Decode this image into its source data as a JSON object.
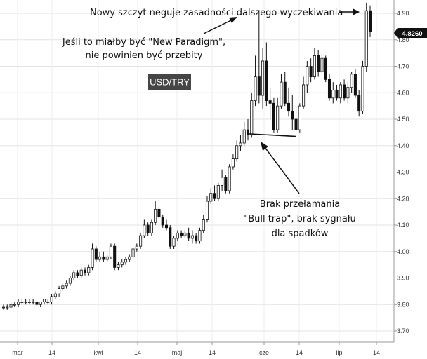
{
  "chart_data": {
    "type": "candlestick",
    "symbol_label": "USD/TRY",
    "last_price_label": "4.8260",
    "ylim": [
      3.65,
      4.95
    ],
    "y_ticks": [
      "3.70",
      "3.80",
      "3.90",
      "4.00",
      "4.10",
      "4.20",
      "4.30",
      "4.40",
      "4.50",
      "4.60",
      "4.70",
      "4.80",
      "4.90"
    ],
    "x_ticks": [
      "mar",
      "14",
      "kwi",
      "14",
      "maj",
      "14",
      "cze",
      "14",
      "lip",
      "14"
    ],
    "grid": true,
    "annotations": [
      {
        "lines": [
          "Nowy szczyt neguje zasadności dalszego wyczekiwania"
        ]
      },
      {
        "lines": [
          "Jeśli to miałby być \"New Paradigm\",",
          "nie powinien być przebity"
        ]
      },
      {
        "lines": [
          "Brak przełamania",
          "\"Bull trap\", brak sygnału",
          "dla spadków"
        ]
      }
    ],
    "support_line": {
      "from": 4.445,
      "to": 4.435
    },
    "candles": [
      [
        3.79,
        3.8,
        3.78,
        3.79
      ],
      [
        3.79,
        3.8,
        3.78,
        3.79
      ],
      [
        3.79,
        3.81,
        3.78,
        3.8
      ],
      [
        3.8,
        3.81,
        3.79,
        3.8
      ],
      [
        3.8,
        3.82,
        3.79,
        3.81
      ],
      [
        3.81,
        3.82,
        3.8,
        3.81
      ],
      [
        3.81,
        3.82,
        3.8,
        3.81
      ],
      [
        3.81,
        3.82,
        3.8,
        3.81
      ],
      [
        3.81,
        3.82,
        3.8,
        3.81
      ],
      [
        3.81,
        3.82,
        3.79,
        3.8
      ],
      [
        3.8,
        3.81,
        3.79,
        3.81
      ],
      [
        3.81,
        3.82,
        3.8,
        3.82
      ],
      [
        3.81,
        3.82,
        3.8,
        3.81
      ],
      [
        3.81,
        3.84,
        3.8,
        3.83
      ],
      [
        3.83,
        3.85,
        3.82,
        3.84
      ],
      [
        3.84,
        3.87,
        3.83,
        3.86
      ],
      [
        3.86,
        3.88,
        3.85,
        3.87
      ],
      [
        3.87,
        3.89,
        3.86,
        3.88
      ],
      [
        3.88,
        3.91,
        3.87,
        3.9
      ],
      [
        3.9,
        3.93,
        3.89,
        3.92
      ],
      [
        3.92,
        3.93,
        3.9,
        3.91
      ],
      [
        3.91,
        3.94,
        3.9,
        3.93
      ],
      [
        3.93,
        3.94,
        3.91,
        3.92
      ],
      [
        3.92,
        3.95,
        3.91,
        3.94
      ],
      [
        3.94,
        4.03,
        3.93,
        4.01
      ],
      [
        4.01,
        4.02,
        3.96,
        3.97
      ],
      [
        3.97,
        4.0,
        3.96,
        3.98
      ],
      [
        3.98,
        4.0,
        3.96,
        3.97
      ],
      [
        3.97,
        3.99,
        3.96,
        3.98
      ],
      [
        3.98,
        4.03,
        3.97,
        4.02
      ],
      [
        4.02,
        4.03,
        3.93,
        3.94
      ],
      [
        3.94,
        3.96,
        3.93,
        3.95
      ],
      [
        3.95,
        3.97,
        3.94,
        3.96
      ],
      [
        3.96,
        3.98,
        3.95,
        3.97
      ],
      [
        3.97,
        3.99,
        3.96,
        3.98
      ],
      [
        3.98,
        4.02,
        3.97,
        4.01
      ],
      [
        4.01,
        4.03,
        4.0,
        4.02
      ],
      [
        4.02,
        4.07,
        4.01,
        4.06
      ],
      [
        4.06,
        4.12,
        4.05,
        4.1
      ],
      [
        4.1,
        4.11,
        4.06,
        4.07
      ],
      [
        4.07,
        4.12,
        4.06,
        4.11
      ],
      [
        4.11,
        4.19,
        4.1,
        4.16
      ],
      [
        4.16,
        4.17,
        4.12,
        4.13
      ],
      [
        4.13,
        4.14,
        4.09,
        4.1
      ],
      [
        4.1,
        4.12,
        4.08,
        4.09
      ],
      [
        4.09,
        4.1,
        4.01,
        4.02
      ],
      [
        4.02,
        4.06,
        4.01,
        4.05
      ],
      [
        4.05,
        4.08,
        4.04,
        4.07
      ],
      [
        4.07,
        4.08,
        4.05,
        4.06
      ],
      [
        4.06,
        4.08,
        4.05,
        4.07
      ],
      [
        4.07,
        4.09,
        4.04,
        4.05
      ],
      [
        4.05,
        4.08,
        4.03,
        4.06
      ],
      [
        4.06,
        4.07,
        4.03,
        4.04
      ],
      [
        4.04,
        4.09,
        4.03,
        4.08
      ],
      [
        4.08,
        4.14,
        4.07,
        4.12
      ],
      [
        4.12,
        4.21,
        4.11,
        4.19
      ],
      [
        4.19,
        4.24,
        4.18,
        4.22
      ],
      [
        4.22,
        4.25,
        4.19,
        4.2
      ],
      [
        4.2,
        4.26,
        4.19,
        4.25
      ],
      [
        4.25,
        4.31,
        4.23,
        4.28
      ],
      [
        4.28,
        4.29,
        4.22,
        4.23
      ],
      [
        4.23,
        4.33,
        4.22,
        4.32
      ],
      [
        4.32,
        4.37,
        4.31,
        4.35
      ],
      [
        4.35,
        4.42,
        4.34,
        4.4
      ],
      [
        4.4,
        4.44,
        4.38,
        4.41
      ],
      [
        4.41,
        4.49,
        4.4,
        4.46
      ],
      [
        4.46,
        4.5,
        4.42,
        4.44
      ],
      [
        4.44,
        4.6,
        4.43,
        4.57
      ],
      [
        4.57,
        4.74,
        4.55,
        4.66
      ],
      [
        4.66,
        4.91,
        4.56,
        4.59
      ],
      [
        4.59,
        4.77,
        4.54,
        4.72
      ],
      [
        4.72,
        4.79,
        4.55,
        4.57
      ],
      [
        4.57,
        4.62,
        4.5,
        4.56
      ],
      [
        4.56,
        4.58,
        4.45,
        4.46
      ],
      [
        4.46,
        4.58,
        4.45,
        4.55
      ],
      [
        4.55,
        4.67,
        4.54,
        4.64
      ],
      [
        4.64,
        4.68,
        4.55,
        4.56
      ],
      [
        4.56,
        4.62,
        4.51,
        4.53
      ],
      [
        4.53,
        4.59,
        4.46,
        4.5
      ],
      [
        4.5,
        4.55,
        4.45,
        4.46
      ],
      [
        4.46,
        4.56,
        4.45,
        4.55
      ],
      [
        4.55,
        4.66,
        4.54,
        4.63
      ],
      [
        4.63,
        4.72,
        4.6,
        4.7
      ],
      [
        4.7,
        4.73,
        4.64,
        4.66
      ],
      [
        4.66,
        4.77,
        4.65,
        4.74
      ],
      [
        4.74,
        4.76,
        4.66,
        4.68
      ],
      [
        4.68,
        4.75,
        4.67,
        4.73
      ],
      [
        4.73,
        4.74,
        4.64,
        4.65
      ],
      [
        4.65,
        4.67,
        4.57,
        4.58
      ],
      [
        4.58,
        4.64,
        4.56,
        4.61
      ],
      [
        4.61,
        4.63,
        4.57,
        4.58
      ],
      [
        4.58,
        4.64,
        4.56,
        4.63
      ],
      [
        4.63,
        4.65,
        4.57,
        4.58
      ],
      [
        4.58,
        4.64,
        4.56,
        4.62
      ],
      [
        4.62,
        4.68,
        4.6,
        4.67
      ],
      [
        4.67,
        4.69,
        4.58,
        4.59
      ],
      [
        4.59,
        4.61,
        4.51,
        4.53
      ],
      [
        4.53,
        4.72,
        4.52,
        4.7
      ],
      [
        4.7,
        4.94,
        4.68,
        4.91
      ],
      [
        4.91,
        4.93,
        4.81,
        4.83
      ]
    ]
  }
}
